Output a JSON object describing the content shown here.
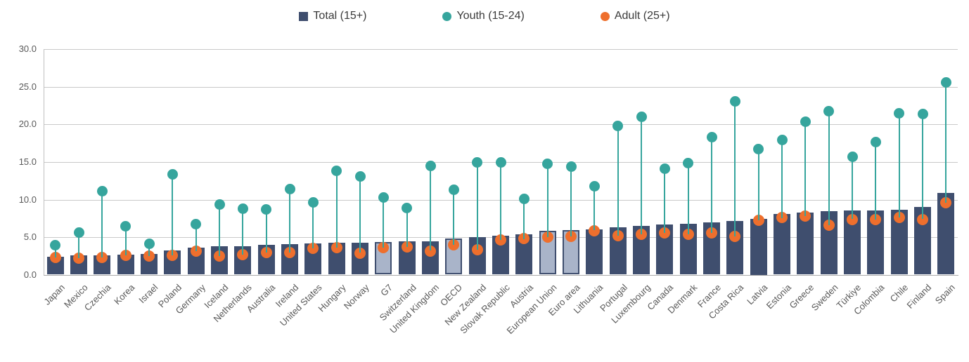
{
  "legend": {
    "total": {
      "label": "Total (15+)"
    },
    "youth": {
      "label": "Youth (15-24)"
    },
    "adult": {
      "label": "Adult (25+)"
    }
  },
  "chart_data": {
    "type": "bar",
    "subtype": "bars-with-lollipop-dots",
    "title": "",
    "xlabel": "",
    "ylabel": "",
    "ylim": [
      0,
      30
    ],
    "ytick_step": 5,
    "ytick_format": "one-decimal",
    "grid": true,
    "legend_position": "top-center",
    "categories": [
      "Japan",
      "Mexico",
      "Czechia",
      "Korea",
      "Israel",
      "Poland",
      "Germany",
      "Iceland",
      "Netherlands",
      "Australia",
      "Ireland",
      "United States",
      "Hungary",
      "Norway",
      "G7",
      "Switzerland",
      "United Kingdom",
      "OECD",
      "New Zealand",
      "Slovak Republic",
      "Austria",
      "European Union",
      "Euro area",
      "Lithuania",
      "Portugal",
      "Luxembourg",
      "Canada",
      "Denmark",
      "France",
      "Costa Rica",
      "Latvia",
      "Estonia",
      "Greece",
      "Sweden",
      "Türkiye",
      "Colombia",
      "Chile",
      "Finland",
      "Spain"
    ],
    "highlighted_categories": [
      "G7",
      "OECD",
      "European Union",
      "Euro area"
    ],
    "series": [
      {
        "name": "Total (15+)",
        "marker": "bar",
        "values": [
          2.4,
          2.6,
          2.6,
          2.7,
          2.8,
          3.3,
          3.6,
          3.8,
          3.8,
          4.0,
          4.1,
          4.2,
          4.3,
          4.3,
          4.4,
          4.5,
          4.5,
          4.8,
          5.0,
          5.2,
          5.4,
          5.9,
          6.0,
          6.1,
          6.3,
          6.5,
          6.7,
          6.8,
          7.0,
          7.2,
          7.5,
          8.1,
          8.3,
          8.5,
          8.6,
          8.6,
          8.7,
          9.0,
          10.9
        ]
      },
      {
        "name": "Youth (15-24)",
        "marker": "circle-on-stem",
        "values": [
          4.0,
          5.6,
          11.1,
          6.5,
          4.1,
          13.4,
          6.8,
          9.4,
          8.8,
          8.7,
          11.4,
          9.6,
          13.8,
          13.1,
          10.3,
          8.9,
          14.5,
          11.3,
          15.0,
          15.0,
          10.1,
          14.8,
          14.4,
          11.8,
          19.8,
          21.0,
          14.1,
          14.9,
          18.3,
          23.1,
          16.7,
          17.9,
          20.4,
          21.8,
          15.7,
          17.7,
          21.5,
          21.4,
          25.6
        ]
      },
      {
        "name": "Adult (25+)",
        "marker": "circle",
        "values": [
          2.3,
          2.2,
          2.3,
          2.6,
          2.5,
          2.6,
          3.2,
          2.5,
          2.7,
          3.0,
          3.0,
          3.5,
          3.6,
          2.9,
          3.6,
          3.7,
          3.2,
          4.0,
          3.4,
          4.7,
          4.8,
          5.0,
          5.1,
          5.9,
          5.2,
          5.4,
          5.6,
          5.4,
          5.6,
          5.1,
          7.3,
          7.6,
          7.8,
          6.6,
          7.4,
          7.4,
          7.6,
          7.4,
          9.6
        ]
      }
    ],
    "colors": {
      "total_bar": "#3f4e6e",
      "aggregate_bar_fill": "#a9b4c9",
      "youth_dot": "#36a59d",
      "adult_dot": "#ee6f2d",
      "gridline": "#c9c9c9",
      "axis_text": "#595959"
    }
  }
}
